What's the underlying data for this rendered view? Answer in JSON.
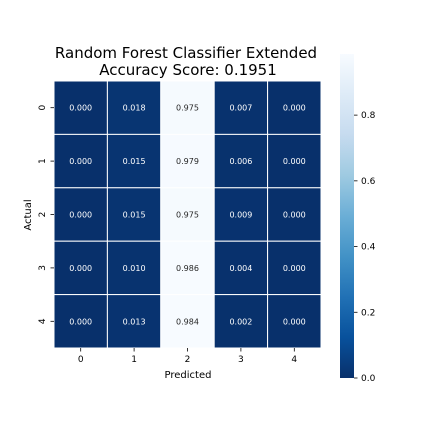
{
  "chart_data": {
    "type": "heatmap",
    "title_lines": [
      "Random Forest Classifier Extended",
      "Accuracy Score: 0.1951"
    ],
    "xlabel": "Predicted",
    "ylabel": "Actual",
    "x_categories": [
      "0",
      "1",
      "2",
      "3",
      "4"
    ],
    "y_categories": [
      "0",
      "1",
      "2",
      "3",
      "4"
    ],
    "values": [
      [
        0.0,
        0.018,
        0.975,
        0.007,
        0.0
      ],
      [
        0.0,
        0.015,
        0.979,
        0.006,
        0.0
      ],
      [
        0.0,
        0.015,
        0.975,
        0.009,
        0.0
      ],
      [
        0.0,
        0.01,
        0.986,
        0.004,
        0.0
      ],
      [
        0.0,
        0.013,
        0.984,
        0.002,
        0.0
      ]
    ],
    "value_labels": [
      [
        "0.000",
        "0.018",
        "0.975",
        "0.007",
        "0.000"
      ],
      [
        "0.000",
        "0.015",
        "0.979",
        "0.006",
        "0.000"
      ],
      [
        "0.000",
        "0.015",
        "0.975",
        "0.009",
        "0.000"
      ],
      [
        "0.000",
        "0.010",
        "0.986",
        "0.004",
        "0.000"
      ],
      [
        "0.000",
        "0.013",
        "0.984",
        "0.002",
        "0.000"
      ]
    ],
    "colormap": "Blues_r",
    "vmin": 0.0,
    "vmax": 0.986,
    "colorbar_ticks": [
      0.0,
      0.2,
      0.4,
      0.6,
      0.8
    ],
    "colorbar_tick_labels": [
      "0.0",
      "0.2",
      "0.4",
      "0.6",
      "0.8"
    ],
    "grid": false,
    "colors": {
      "dark": "#08306b",
      "light": "#f7fbff",
      "text_on_dark": "#ffffff",
      "text_on_light": "#262626",
      "cell_border": "#ffffff"
    }
  }
}
